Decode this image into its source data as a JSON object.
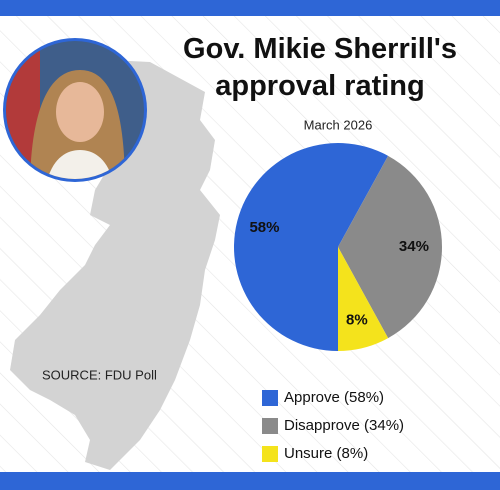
{
  "chart_data": {
    "type": "pie",
    "title": "Gov. Mikie Sherrill's approval rating",
    "subtitle": "March 2026",
    "categories": [
      "Approve (58%)",
      "Disapprove (34%)",
      "Unsure (8%)"
    ],
    "values": [
      58,
      34,
      8
    ],
    "value_labels": [
      "58%",
      "34%",
      "8%"
    ],
    "colors": [
      "#2e66d6",
      "#8a8a8a",
      "#f4e31c"
    ],
    "source": "SOURCE: FDU Poll"
  }
}
